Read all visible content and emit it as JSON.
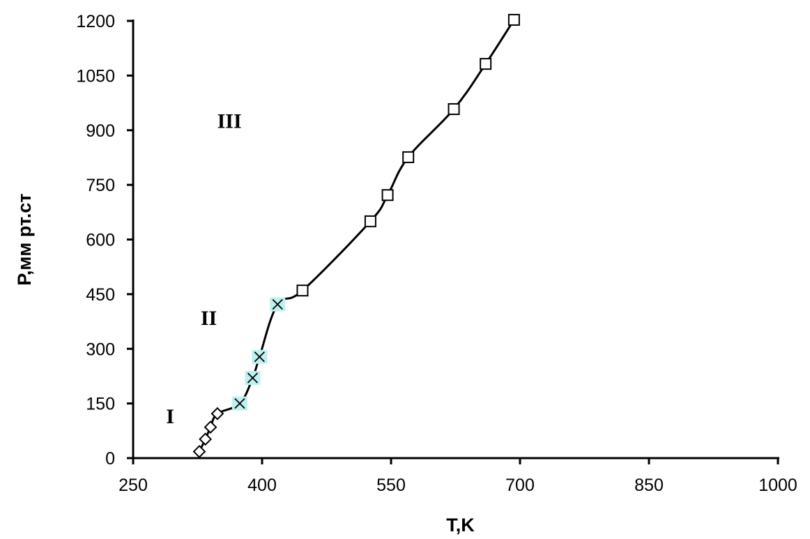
{
  "chart_data": {
    "type": "scatter",
    "xlabel": "T,K",
    "ylabel": "P,мм рт.ст",
    "xlim": [
      250,
      1000
    ],
    "ylim": [
      0,
      1200
    ],
    "x_ticks": [
      250,
      400,
      550,
      700,
      850,
      1000
    ],
    "y_ticks": [
      0,
      150,
      300,
      450,
      600,
      750,
      900,
      1050,
      1200
    ],
    "grid": false,
    "legend": "none",
    "line_color": "#000000",
    "x_marker_highlight": "#bff0f0",
    "regions": [
      {
        "label": "I",
        "x": 293,
        "y": 115
      },
      {
        "label": "II",
        "x": 338,
        "y": 385
      },
      {
        "label": "III",
        "x": 362,
        "y": 925
      }
    ],
    "series": [
      {
        "marker": "diamond",
        "points": [
          {
            "x": 327,
            "y": 18
          },
          {
            "x": 334,
            "y": 52
          },
          {
            "x": 340,
            "y": 85
          },
          {
            "x": 348,
            "y": 122
          }
        ]
      },
      {
        "marker": "x",
        "points": [
          {
            "x": 374,
            "y": 150
          },
          {
            "x": 389,
            "y": 220
          },
          {
            "x": 397,
            "y": 278
          },
          {
            "x": 418,
            "y": 422
          }
        ]
      },
      {
        "marker": "square",
        "points": [
          {
            "x": 447,
            "y": 460
          },
          {
            "x": 526,
            "y": 650
          },
          {
            "x": 546,
            "y": 722
          },
          {
            "x": 570,
            "y": 826
          },
          {
            "x": 623,
            "y": 958
          },
          {
            "x": 660,
            "y": 1082
          },
          {
            "x": 693,
            "y": 1203
          }
        ]
      }
    ]
  }
}
